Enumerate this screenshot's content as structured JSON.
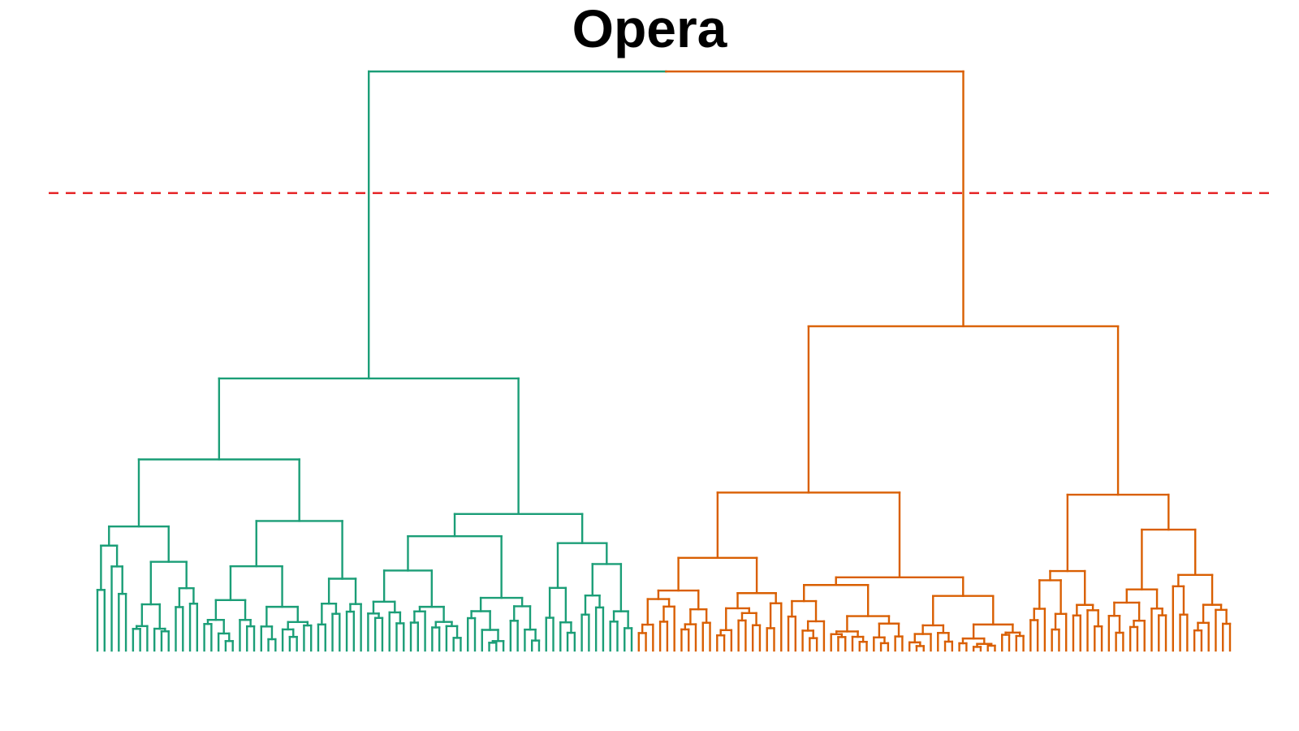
{
  "chart_data": {
    "type": "dendrogram",
    "title": "Opera",
    "xlabel": "",
    "ylabel": "",
    "ylim": [
      0,
      100
    ],
    "cut_height": 79,
    "cut_line_color": "#e41a1c",
    "clusters": [
      {
        "id": "cluster-1",
        "color": "#1b9e77",
        "leaf_count": 76,
        "height": 47
      },
      {
        "id": "cluster-2",
        "color": "#d95f02",
        "leaf_count": 84,
        "height": 56
      }
    ],
    "root_height": 100,
    "grid": false,
    "legend": "none"
  }
}
